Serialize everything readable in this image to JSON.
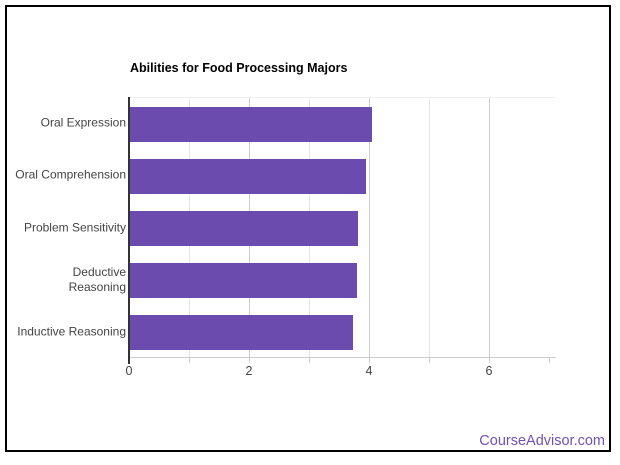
{
  "page": {
    "background": "#ffffff",
    "frame_border_color": "#000000"
  },
  "footer": {
    "brand_text": "CourseAdvisor.com",
    "brand_color": "#7251b5"
  },
  "chart_data": {
    "type": "bar",
    "orientation": "horizontal",
    "title": "Abilities for Food Processing Majors",
    "categories": [
      "Oral Expression",
      "Oral Comprehension",
      "Problem Sensitivity",
      "Deductive Reasoning",
      "Inductive Reasoning"
    ],
    "category_label_lines": [
      [
        "Oral Expression"
      ],
      [
        "Oral Comprehension"
      ],
      [
        "Problem Sensitivity"
      ],
      [
        "Deductive",
        "Reasoning"
      ],
      [
        "Inductive Reasoning"
      ]
    ],
    "values": [
      4.05,
      3.96,
      3.82,
      3.8,
      3.74
    ],
    "xlabel": "",
    "ylabel": "",
    "xlim": [
      0,
      7.12
    ],
    "x_ticks_major": [
      0,
      2,
      4,
      6
    ],
    "x_ticks_minor": [
      1,
      3,
      5
    ],
    "x_tick_marks": [
      1,
      2,
      3,
      4,
      5,
      6,
      7
    ],
    "grid": true,
    "legend": "none",
    "bar_color": "#6c4baf",
    "gridline_color_major": "#cccccc",
    "gridline_color_minor": "#e6e6e6",
    "axis_line_color": "#333333",
    "tick_mark_color": "#cccccc",
    "label_color": "#444444",
    "title_color": "#000000"
  }
}
